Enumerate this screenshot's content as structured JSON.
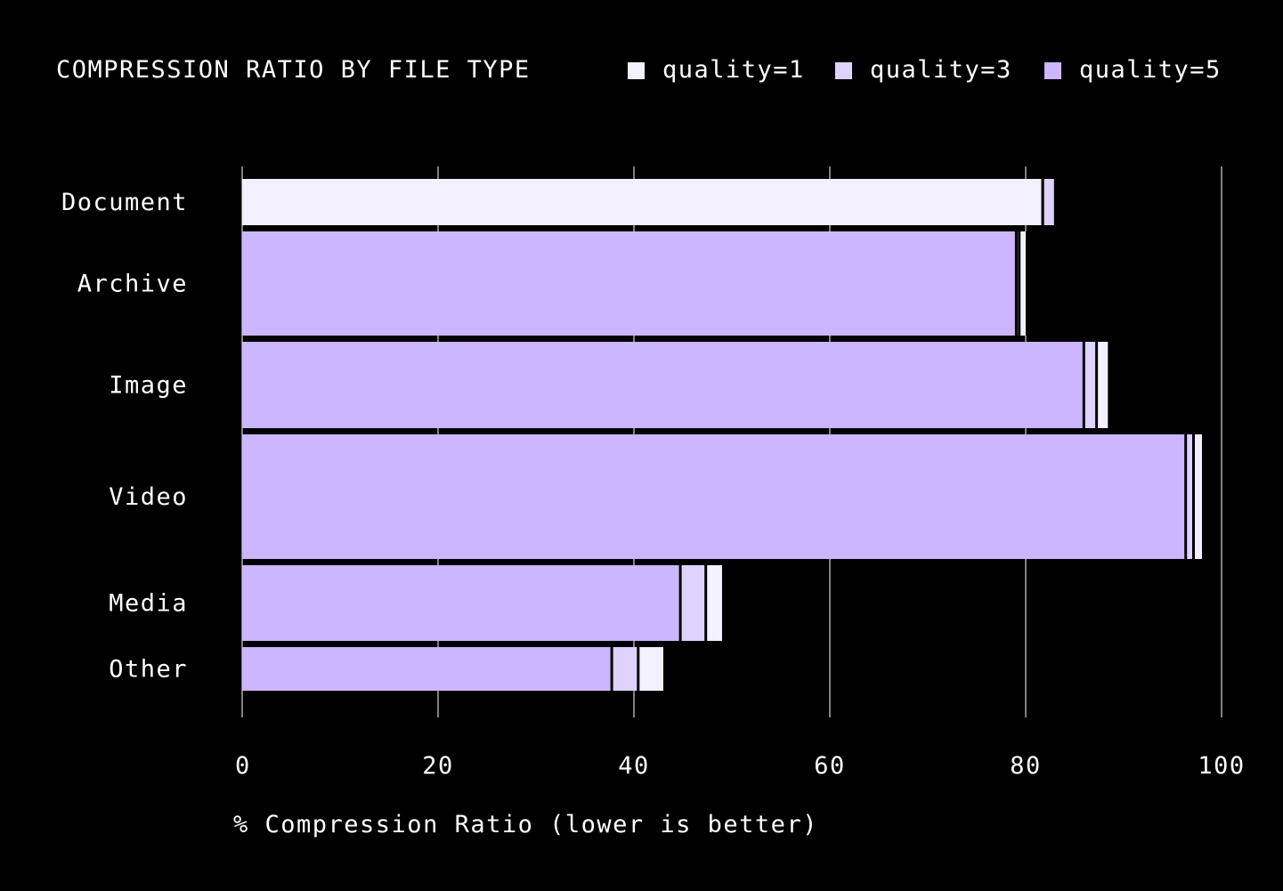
{
  "chart_data": {
    "type": "bar",
    "orientation": "horizontal",
    "title": "COMPRESSION RATIO BY FILE TYPE",
    "xlabel": "% Compression Ratio (lower is better)",
    "ylabel": "",
    "xlim": [
      0,
      100
    ],
    "xticks": [
      "0",
      "20",
      "40",
      "60",
      "80",
      "100"
    ],
    "grid": "vertical",
    "legend": "top-right",
    "categories": [
      "Document",
      "Archive",
      "Image",
      "Video",
      "Media",
      "Other"
    ],
    "series": [
      {
        "name": "quality=5",
        "color": "#cbb6ff",
        "values": [
          81.6,
          78.9,
          85.8,
          96.2,
          44.6,
          37.6
        ]
      },
      {
        "name": "quality=3",
        "color": "#ded3ff",
        "values": [
          82.9,
          79.2,
          87.1,
          97.0,
          47.2,
          40.3
        ]
      },
      {
        "name": "quality=1",
        "color": "#f3f0ff",
        "values": [
          81.6,
          80.0,
          88.4,
          98.0,
          49.0,
          43.0
        ]
      }
    ]
  }
}
